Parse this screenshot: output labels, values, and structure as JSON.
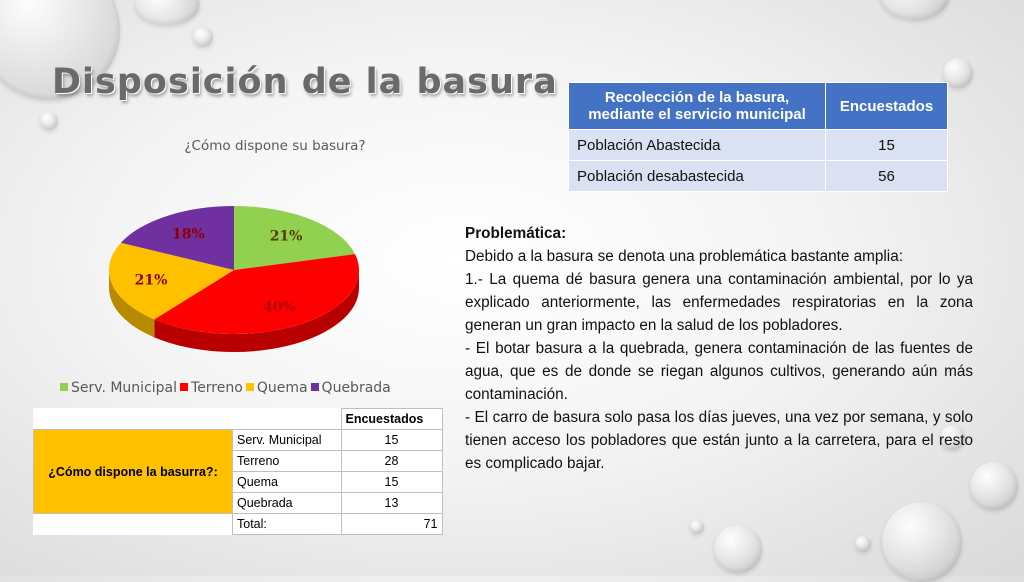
{
  "title": "Disposición de la basura",
  "chart_data": {
    "type": "pie",
    "title": "¿Cómo dispone su basura?",
    "categories": [
      "Serv. Municipal",
      "Terreno",
      "Quema",
      "Quebrada"
    ],
    "values": [
      21,
      40,
      21,
      18
    ],
    "labels": [
      "21%",
      "40%",
      "21%",
      "18%"
    ],
    "colors": [
      "#92d050",
      "#ff0000",
      "#ffc000",
      "#7030a0"
    ],
    "legend": "bottom"
  },
  "top_table": {
    "headers": [
      "Recolección de la basura, mediante el servicio municipal",
      "Encuestados"
    ],
    "rows": [
      [
        "Población Abastecida",
        "15"
      ],
      [
        "Población desabastecida",
        "56"
      ]
    ]
  },
  "problematica": {
    "heading": "Problemática:",
    "paragraphs": [
      "Debido a la basura se denota una problemática bastante amplia:",
      "1.- La quema dé basura genera una contaminación ambiental, por lo ya explicado anteriormente, las enfermedades respiratorias en la zona generan un gran impacto en la salud de los pobladores.",
      "- El botar basura a la quebrada, genera contaminación de las fuentes de agua, que es de donde se riegan algunos cultivos, generando aún más contaminación.",
      "- El carro de basura solo pasa los días jueves, una vez por semana, y solo tienen acceso los pobladores que están junto a la carretera, para el resto es complicado bajar."
    ]
  },
  "bottom_table": {
    "header": "Encuestados",
    "question": "¿Cómo dispone la basurra?:",
    "rows": [
      [
        "Serv. Municipal",
        "15"
      ],
      [
        "Terreno",
        "28"
      ],
      [
        "Quema",
        "15"
      ],
      [
        "Quebrada",
        "13"
      ]
    ],
    "total_label": "Total:",
    "total_value": "71"
  }
}
